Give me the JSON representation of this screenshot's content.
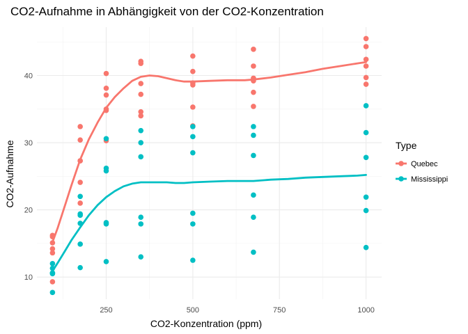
{
  "chart_data": {
    "type": "scatter",
    "title": "CO2-Aufnahme in Abhängigkeit von der CO2-Konzentration",
    "xlabel": "CO2-Konzentration (ppm)",
    "ylabel": "CO2-Aufnahme",
    "xlim": [
      50,
      1045
    ],
    "ylim": [
      6.7,
      47.2
    ],
    "x_ticks": [
      250,
      500,
      750,
      1000
    ],
    "x_minor_ticks": [
      125,
      375,
      625,
      875
    ],
    "y_ticks": [
      10,
      20,
      30,
      40
    ],
    "y_minor_ticks": [
      15,
      25,
      35,
      45
    ],
    "grid": true,
    "legend": {
      "title": "Type",
      "position": "right"
    },
    "series": [
      {
        "name": "Quebec",
        "color": "#F8766D",
        "points": [
          [
            95,
            16.0
          ],
          [
            95,
            13.6
          ],
          [
            95,
            16.2
          ],
          [
            95,
            14.2
          ],
          [
            95,
            9.3
          ],
          [
            95,
            15.1
          ],
          [
            175,
            30.4
          ],
          [
            175,
            27.3
          ],
          [
            175,
            32.4
          ],
          [
            175,
            24.1
          ],
          [
            175,
            27.3
          ],
          [
            175,
            21.0
          ],
          [
            250,
            34.8
          ],
          [
            250,
            37.1
          ],
          [
            250,
            40.3
          ],
          [
            250,
            30.3
          ],
          [
            250,
            35.0
          ],
          [
            250,
            38.1
          ],
          [
            350,
            37.2
          ],
          [
            350,
            41.8
          ],
          [
            350,
            42.1
          ],
          [
            350,
            34.6
          ],
          [
            350,
            38.8
          ],
          [
            350,
            34.0
          ],
          [
            500,
            35.3
          ],
          [
            500,
            40.6
          ],
          [
            500,
            42.9
          ],
          [
            500,
            32.5
          ],
          [
            500,
            38.6
          ],
          [
            500,
            38.9
          ],
          [
            675,
            39.2
          ],
          [
            675,
            41.4
          ],
          [
            675,
            43.9
          ],
          [
            675,
            35.4
          ],
          [
            675,
            37.5
          ],
          [
            675,
            39.6
          ],
          [
            1000,
            39.7
          ],
          [
            1000,
            44.3
          ],
          [
            1000,
            45.5
          ],
          [
            1000,
            38.7
          ],
          [
            1000,
            42.4
          ],
          [
            1000,
            41.4
          ]
        ],
        "smooth": [
          [
            95,
            15.2
          ],
          [
            110,
            17.3
          ],
          [
            130,
            20.5
          ],
          [
            150,
            23.7
          ],
          [
            175,
            27.5
          ],
          [
            200,
            30.5
          ],
          [
            225,
            33.0
          ],
          [
            250,
            35.2
          ],
          [
            275,
            36.8
          ],
          [
            300,
            38.1
          ],
          [
            325,
            39.2
          ],
          [
            350,
            39.8
          ],
          [
            375,
            40.0
          ],
          [
            400,
            39.9
          ],
          [
            425,
            39.6
          ],
          [
            450,
            39.3
          ],
          [
            475,
            39.1
          ],
          [
            500,
            39.1
          ],
          [
            550,
            39.2
          ],
          [
            600,
            39.3
          ],
          [
            650,
            39.3
          ],
          [
            675,
            39.4
          ],
          [
            725,
            39.7
          ],
          [
            775,
            40.1
          ],
          [
            825,
            40.5
          ],
          [
            875,
            41.0
          ],
          [
            925,
            41.4
          ],
          [
            975,
            41.8
          ],
          [
            1000,
            42.0
          ]
        ]
      },
      {
        "name": "Mississippi",
        "color": "#00BFC4",
        "points": [
          [
            95,
            10.6
          ],
          [
            95,
            12.0
          ],
          [
            95,
            11.3
          ],
          [
            95,
            10.5
          ],
          [
            95,
            7.7
          ],
          [
            95,
            10.6
          ],
          [
            175,
            19.2
          ],
          [
            175,
            22.0
          ],
          [
            175,
            19.4
          ],
          [
            175,
            14.9
          ],
          [
            175,
            11.4
          ],
          [
            175,
            18.0
          ],
          [
            250,
            26.2
          ],
          [
            250,
            30.6
          ],
          [
            250,
            25.8
          ],
          [
            250,
            18.1
          ],
          [
            250,
            12.3
          ],
          [
            250,
            17.9
          ],
          [
            350,
            30.0
          ],
          [
            350,
            31.8
          ],
          [
            350,
            27.9
          ],
          [
            350,
            18.9
          ],
          [
            350,
            13.0
          ],
          [
            350,
            17.9
          ],
          [
            500,
            30.9
          ],
          [
            500,
            32.4
          ],
          [
            500,
            28.5
          ],
          [
            500,
            19.5
          ],
          [
            500,
            12.5
          ],
          [
            500,
            17.9
          ],
          [
            675,
            32.4
          ],
          [
            675,
            31.1
          ],
          [
            675,
            28.1
          ],
          [
            675,
            22.2
          ],
          [
            675,
            13.7
          ],
          [
            675,
            18.9
          ],
          [
            1000,
            35.5
          ],
          [
            1000,
            31.5
          ],
          [
            1000,
            27.8
          ],
          [
            1000,
            21.9
          ],
          [
            1000,
            14.4
          ],
          [
            1000,
            19.9
          ]
        ],
        "smooth": [
          [
            95,
            10.9
          ],
          [
            110,
            12.1
          ],
          [
            130,
            13.8
          ],
          [
            150,
            15.5
          ],
          [
            175,
            17.4
          ],
          [
            200,
            19.2
          ],
          [
            225,
            20.7
          ],
          [
            250,
            21.9
          ],
          [
            275,
            22.8
          ],
          [
            300,
            23.5
          ],
          [
            325,
            23.9
          ],
          [
            350,
            24.1
          ],
          [
            375,
            24.1
          ],
          [
            400,
            24.1
          ],
          [
            425,
            24.1
          ],
          [
            450,
            24.0
          ],
          [
            475,
            24.0
          ],
          [
            500,
            24.1
          ],
          [
            550,
            24.2
          ],
          [
            600,
            24.3
          ],
          [
            650,
            24.3
          ],
          [
            675,
            24.3
          ],
          [
            725,
            24.5
          ],
          [
            775,
            24.6
          ],
          [
            825,
            24.8
          ],
          [
            875,
            24.9
          ],
          [
            925,
            25.0
          ],
          [
            975,
            25.1
          ],
          [
            1000,
            25.2
          ]
        ]
      }
    ]
  }
}
